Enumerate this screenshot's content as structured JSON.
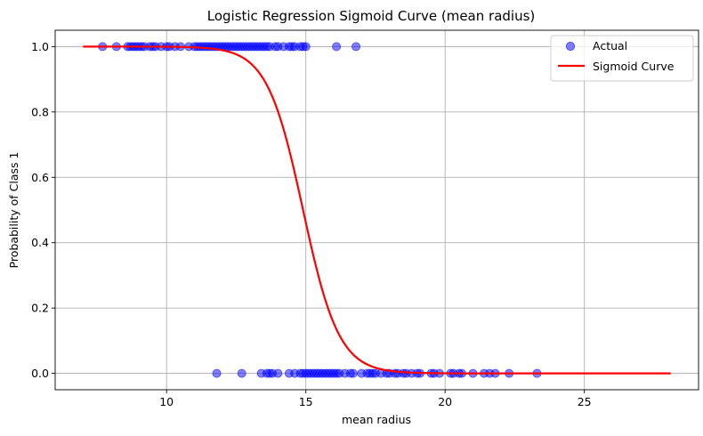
{
  "chart_data": {
    "type": "scatter",
    "title": "Logistic Regression Sigmoid Curve (mean radius)",
    "xlabel": "mean radius",
    "ylabel": "Probability of Class 1",
    "xlim": [
      6.0,
      29.1
    ],
    "ylim": [
      -0.05,
      1.05
    ],
    "xticks": [
      10,
      15,
      20,
      25
    ],
    "yticks": [
      0.0,
      0.2,
      0.4,
      0.6,
      0.8,
      1.0
    ],
    "xtick_labels": [
      "10",
      "15",
      "20",
      "25"
    ],
    "ytick_labels": [
      "0.0",
      "0.2",
      "0.4",
      "0.6",
      "0.8",
      "1.0"
    ],
    "grid": true,
    "legend_position": "top-right",
    "colors": {
      "actual": "#0000ff",
      "curve": "#ff0000"
    },
    "series": [
      {
        "name": "Actual",
        "kind": "scatter",
        "class_1_x": [
          7.7,
          8.2,
          8.6,
          8.7,
          8.8,
          8.9,
          9.0,
          9.1,
          9.2,
          9.4,
          9.5,
          9.6,
          9.8,
          10.0,
          10.1,
          10.3,
          10.5,
          10.8,
          11.0,
          11.1,
          11.2,
          11.3,
          11.4,
          11.5,
          11.6,
          11.7,
          11.8,
          11.9,
          12.0,
          12.1,
          12.2,
          12.3,
          12.4,
          12.5,
          12.6,
          12.7,
          12.8,
          12.9,
          13.0,
          13.1,
          13.2,
          13.3,
          13.4,
          13.5,
          13.6,
          13.7,
          13.9,
          14.0,
          14.2,
          14.4,
          14.5,
          14.6,
          14.8,
          14.9,
          15.0,
          16.1,
          16.8
        ],
        "class_0_x": [
          11.8,
          12.7,
          13.4,
          13.6,
          13.7,
          13.8,
          14.0,
          14.4,
          14.6,
          14.8,
          14.9,
          15.0,
          15.1,
          15.2,
          15.3,
          15.4,
          15.5,
          15.6,
          15.7,
          15.8,
          15.9,
          16.0,
          16.1,
          16.2,
          16.4,
          16.6,
          16.7,
          17.0,
          17.2,
          17.3,
          17.4,
          17.5,
          17.7,
          17.9,
          18.0,
          18.2,
          18.3,
          18.5,
          18.6,
          18.8,
          19.0,
          19.1,
          19.5,
          19.6,
          19.8,
          20.2,
          20.3,
          20.5,
          20.6,
          21.0,
          21.4,
          21.6,
          21.8,
          22.3,
          23.3
        ]
      },
      {
        "name": "Sigmoid Curve",
        "kind": "line",
        "x_range": [
          7.0,
          28.1
        ],
        "midpoint": 14.9,
        "slope": -1.55
      }
    ]
  }
}
